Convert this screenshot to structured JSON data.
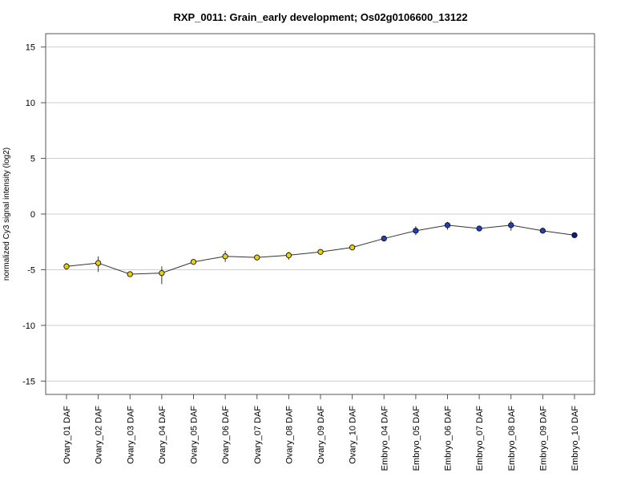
{
  "chart_data": {
    "type": "line",
    "title": "RXP_0011: Grain_early development; Os02g0106600_13122",
    "xlabel": "",
    "ylabel": "normalized Cy3 signal intensity (log2)",
    "ylim": [
      -16.2,
      16.2
    ],
    "yticks": [
      -15,
      -10,
      -5,
      0,
      5,
      10,
      15
    ],
    "grid": true,
    "categories": [
      "Ovary_01 DAF",
      "Ovary_02 DAF",
      "Ovary_03 DAF",
      "Ovary_04 DAF",
      "Ovary_05 DAF",
      "Ovary_06 DAF",
      "Ovary_07 DAF",
      "Ovary_08 DAF",
      "Ovary_09 DAF",
      "Ovary_10 DAF",
      "Embryo_04 DAF",
      "Embryo_05 DAF",
      "Embryo_06 DAF",
      "Embryo_07 DAF",
      "Embryo_08 DAF",
      "Embryo_09 DAF",
      "Embryo_10 DAF"
    ],
    "values": [
      -4.7,
      -4.4,
      -5.4,
      -5.3,
      -4.3,
      -3.8,
      -3.9,
      -3.7,
      -3.4,
      -3.0,
      -2.2,
      -1.5,
      -1.0,
      -1.3,
      -1.0,
      -1.5,
      -1.9
    ],
    "err_low": [
      -5.0,
      -5.2,
      -5.5,
      -6.3,
      -4.45,
      -4.3,
      -4.0,
      -4.1,
      -3.55,
      -3.1,
      -2.4,
      -1.9,
      -1.4,
      -1.45,
      -1.5,
      -1.6,
      -2.0
    ],
    "err_high": [
      -4.4,
      -3.8,
      -5.25,
      -4.7,
      -4.15,
      -3.3,
      -3.75,
      -3.4,
      -3.25,
      -2.9,
      -2.0,
      -1.1,
      -0.7,
      -1.15,
      -0.6,
      -1.4,
      -1.8
    ],
    "colors": [
      "#e8d10f",
      "#e8d10f",
      "#e8d10f",
      "#e8d10f",
      "#e8d10f",
      "#e8d10f",
      "#e8d10f",
      "#e8d10f",
      "#e8d10f",
      "#e8d10f",
      "#1f3fbf",
      "#1f3fbf",
      "#1f3fbf",
      "#1f3fbf",
      "#1f3fbf",
      "#1f3fbf",
      "#0a1a8c"
    ]
  }
}
